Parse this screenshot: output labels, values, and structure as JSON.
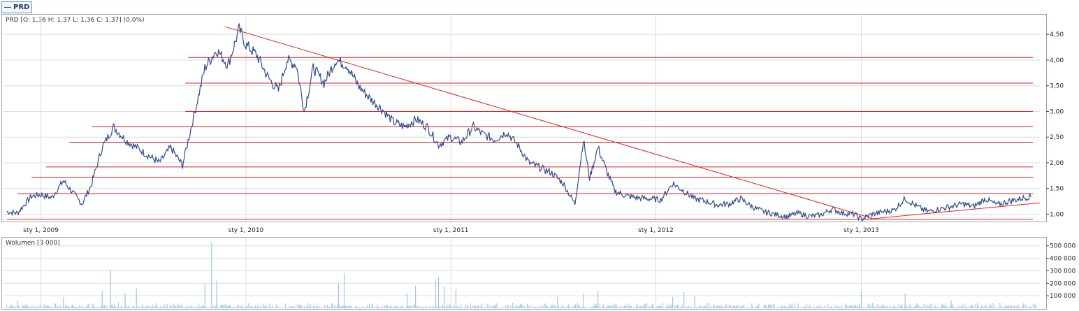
{
  "symbol_tag": "PRD",
  "price_header": "PRD [O: 1,36  H: 1,37  L: 1,36  C: 1,37] (0,0%)",
  "volume_header": "Wolumen [3 000]",
  "colors": {
    "price_line": "#2f4d8a",
    "trend_lines": "#e02020",
    "volume_bars": "#9ec4ec",
    "grid": "#d9dde3"
  },
  "chart_data": [
    {
      "type": "line",
      "series": [
        {
          "name": "PRD",
          "x": [
            "2008-11-01",
            "2008-11-20",
            "2008-12-15",
            "2009-01-01",
            "2009-01-20",
            "2009-02-10",
            "2009-02-28",
            "2009-03-15",
            "2009-03-31",
            "2009-04-20",
            "2009-05-10",
            "2009-05-31",
            "2009-06-20",
            "2009-07-10",
            "2009-07-31",
            "2009-08-20",
            "2009-09-10",
            "2009-09-30",
            "2009-10-20",
            "2009-11-10",
            "2009-11-30",
            "2009-12-20",
            "2010-01-01",
            "2010-01-20",
            "2010-02-10",
            "2010-02-28",
            "2010-03-15",
            "2010-04-01",
            "2010-04-15",
            "2010-05-01",
            "2010-05-20",
            "2010-06-10",
            "2010-06-30",
            "2010-07-20",
            "2010-08-10",
            "2010-08-31",
            "2010-09-20",
            "2010-10-10",
            "2010-10-31",
            "2010-11-20",
            "2010-12-10",
            "2010-12-31",
            "2011-01-20",
            "2011-02-10",
            "2011-02-28",
            "2011-03-20",
            "2011-04-10",
            "2011-04-30",
            "2011-05-20",
            "2011-06-10",
            "2011-06-30",
            "2011-07-20",
            "2011-08-10",
            "2011-08-25",
            "2011-09-05",
            "2011-09-20",
            "2011-10-05",
            "2011-10-20",
            "2011-11-10",
            "2011-11-30",
            "2011-12-20",
            "2012-01-10",
            "2012-01-31",
            "2012-02-20",
            "2012-03-10",
            "2012-03-31",
            "2012-04-20",
            "2012-05-10",
            "2012-05-31",
            "2012-06-20",
            "2012-07-10",
            "2012-07-31",
            "2012-08-20",
            "2012-09-10",
            "2012-09-30",
            "2012-10-20",
            "2012-11-10",
            "2012-11-30",
            "2012-12-20",
            "2013-01-01",
            "2013-01-20",
            "2013-02-10",
            "2013-02-28",
            "2013-03-20",
            "2013-04-10",
            "2013-04-30",
            "2013-05-20",
            "2013-06-10",
            "2013-06-30",
            "2013-07-20",
            "2013-08-10",
            "2013-08-31",
            "2013-09-20",
            "2013-10-10",
            "2013-10-31"
          ],
          "values": [
            1.05,
            1.02,
            1.35,
            1.38,
            1.32,
            1.65,
            1.4,
            1.2,
            1.55,
            2.3,
            2.7,
            2.45,
            2.3,
            2.15,
            2.0,
            2.3,
            1.95,
            2.9,
            3.85,
            4.2,
            3.9,
            4.6,
            4.3,
            4.1,
            3.65,
            3.4,
            4.0,
            3.9,
            3.0,
            3.85,
            3.55,
            4.0,
            3.9,
            3.5,
            3.25,
            3.05,
            2.8,
            2.7,
            2.85,
            2.7,
            2.35,
            2.5,
            2.4,
            2.7,
            2.55,
            2.45,
            2.6,
            2.35,
            2.0,
            1.9,
            1.8,
            1.6,
            1.2,
            2.45,
            1.7,
            2.3,
            1.85,
            1.45,
            1.35,
            1.32,
            1.3,
            1.28,
            1.6,
            1.45,
            1.3,
            1.25,
            1.18,
            1.2,
            1.3,
            1.15,
            1.05,
            1.0,
            0.95,
            1.02,
            0.96,
            0.98,
            1.1,
            1.02,
            1.0,
            0.9,
            1.0,
            1.05,
            1.08,
            1.3,
            1.15,
            1.05,
            1.1,
            1.15,
            1.2,
            1.15,
            1.3,
            1.18,
            1.25,
            1.3,
            1.35
          ]
        }
      ],
      "x_tick_labels": [
        "sty 1, 2009",
        "sty 1, 2010",
        "sty 1, 2011",
        "sty 1, 2012",
        "sty 1, 2013"
      ],
      "x_ticks": [
        "2009-01-01",
        "2010-01-01",
        "2011-01-01",
        "2012-01-01",
        "2013-01-01"
      ],
      "x_range": [
        "2008-10-25",
        "2013-11-15"
      ],
      "y_ticks": [
        1.0,
        1.5,
        2.0,
        2.5,
        3.0,
        3.5,
        4.0,
        4.5
      ],
      "y_tick_labels": [
        "1,00",
        "1,50",
        "2,00",
        "2,50",
        "3,00",
        "3,50",
        "4,00",
        "4,50"
      ],
      "ylim": [
        0.87,
        4.87
      ],
      "horizontal_levels": [
        {
          "y": 4.05,
          "from": "2009-09-20"
        },
        {
          "y": 3.55,
          "from": "2009-09-15"
        },
        {
          "y": 3.0,
          "from": "2009-09-15"
        },
        {
          "y": 2.7,
          "from": "2009-04-01"
        },
        {
          "y": 2.4,
          "from": "2009-02-20"
        },
        {
          "y": 1.92,
          "from": "2009-01-10"
        },
        {
          "y": 1.72,
          "from": "2008-12-15"
        },
        {
          "y": 1.4,
          "from": "2008-11-20"
        },
        {
          "y": 0.9,
          "from": "2008-11-01"
        }
      ],
      "trend_lines": [
        {
          "from": [
            "2009-11-25",
            4.65
          ],
          "to": [
            "2013-01-20",
            0.92
          ]
        },
        {
          "from": [
            "2013-01-10",
            0.9
          ],
          "to": [
            "2013-11-15",
            1.22
          ]
        }
      ],
      "grid": true
    },
    {
      "type": "bar",
      "name": "Wolumen",
      "x_range": [
        "2008-10-25",
        "2013-11-15"
      ],
      "y_ticks": [
        100000,
        200000,
        300000,
        400000,
        500000
      ],
      "y_tick_labels": [
        "100 000",
        "200 000",
        "300 000",
        "400 000",
        "500 000"
      ],
      "ylim": [
        0,
        560000
      ],
      "spikes": [
        {
          "x": "2008-11-20",
          "value": 60000
        },
        {
          "x": "2009-02-10",
          "value": 90000
        },
        {
          "x": "2009-04-20",
          "value": 140000
        },
        {
          "x": "2009-05-05",
          "value": 310000
        },
        {
          "x": "2009-05-31",
          "value": 120000
        },
        {
          "x": "2009-06-20",
          "value": 160000
        },
        {
          "x": "2009-10-20",
          "value": 190000
        },
        {
          "x": "2009-11-01",
          "value": 530000
        },
        {
          "x": "2009-11-10",
          "value": 220000
        },
        {
          "x": "2010-06-15",
          "value": 200000
        },
        {
          "x": "2010-06-25",
          "value": 280000
        },
        {
          "x": "2010-10-15",
          "value": 120000
        },
        {
          "x": "2010-10-30",
          "value": 180000
        },
        {
          "x": "2010-12-05",
          "value": 220000
        },
        {
          "x": "2010-12-10",
          "value": 250000
        },
        {
          "x": "2010-12-20",
          "value": 170000
        },
        {
          "x": "2011-01-10",
          "value": 150000
        },
        {
          "x": "2011-07-10",
          "value": 90000
        },
        {
          "x": "2011-08-25",
          "value": 120000
        },
        {
          "x": "2011-09-20",
          "value": 140000
        },
        {
          "x": "2012-01-31",
          "value": 90000
        },
        {
          "x": "2012-02-20",
          "value": 130000
        },
        {
          "x": "2012-03-10",
          "value": 100000
        },
        {
          "x": "2013-01-01",
          "value": 130000
        },
        {
          "x": "2013-03-20",
          "value": 120000
        },
        {
          "x": "2013-06-10",
          "value": 60000
        }
      ],
      "grid": true
    }
  ]
}
